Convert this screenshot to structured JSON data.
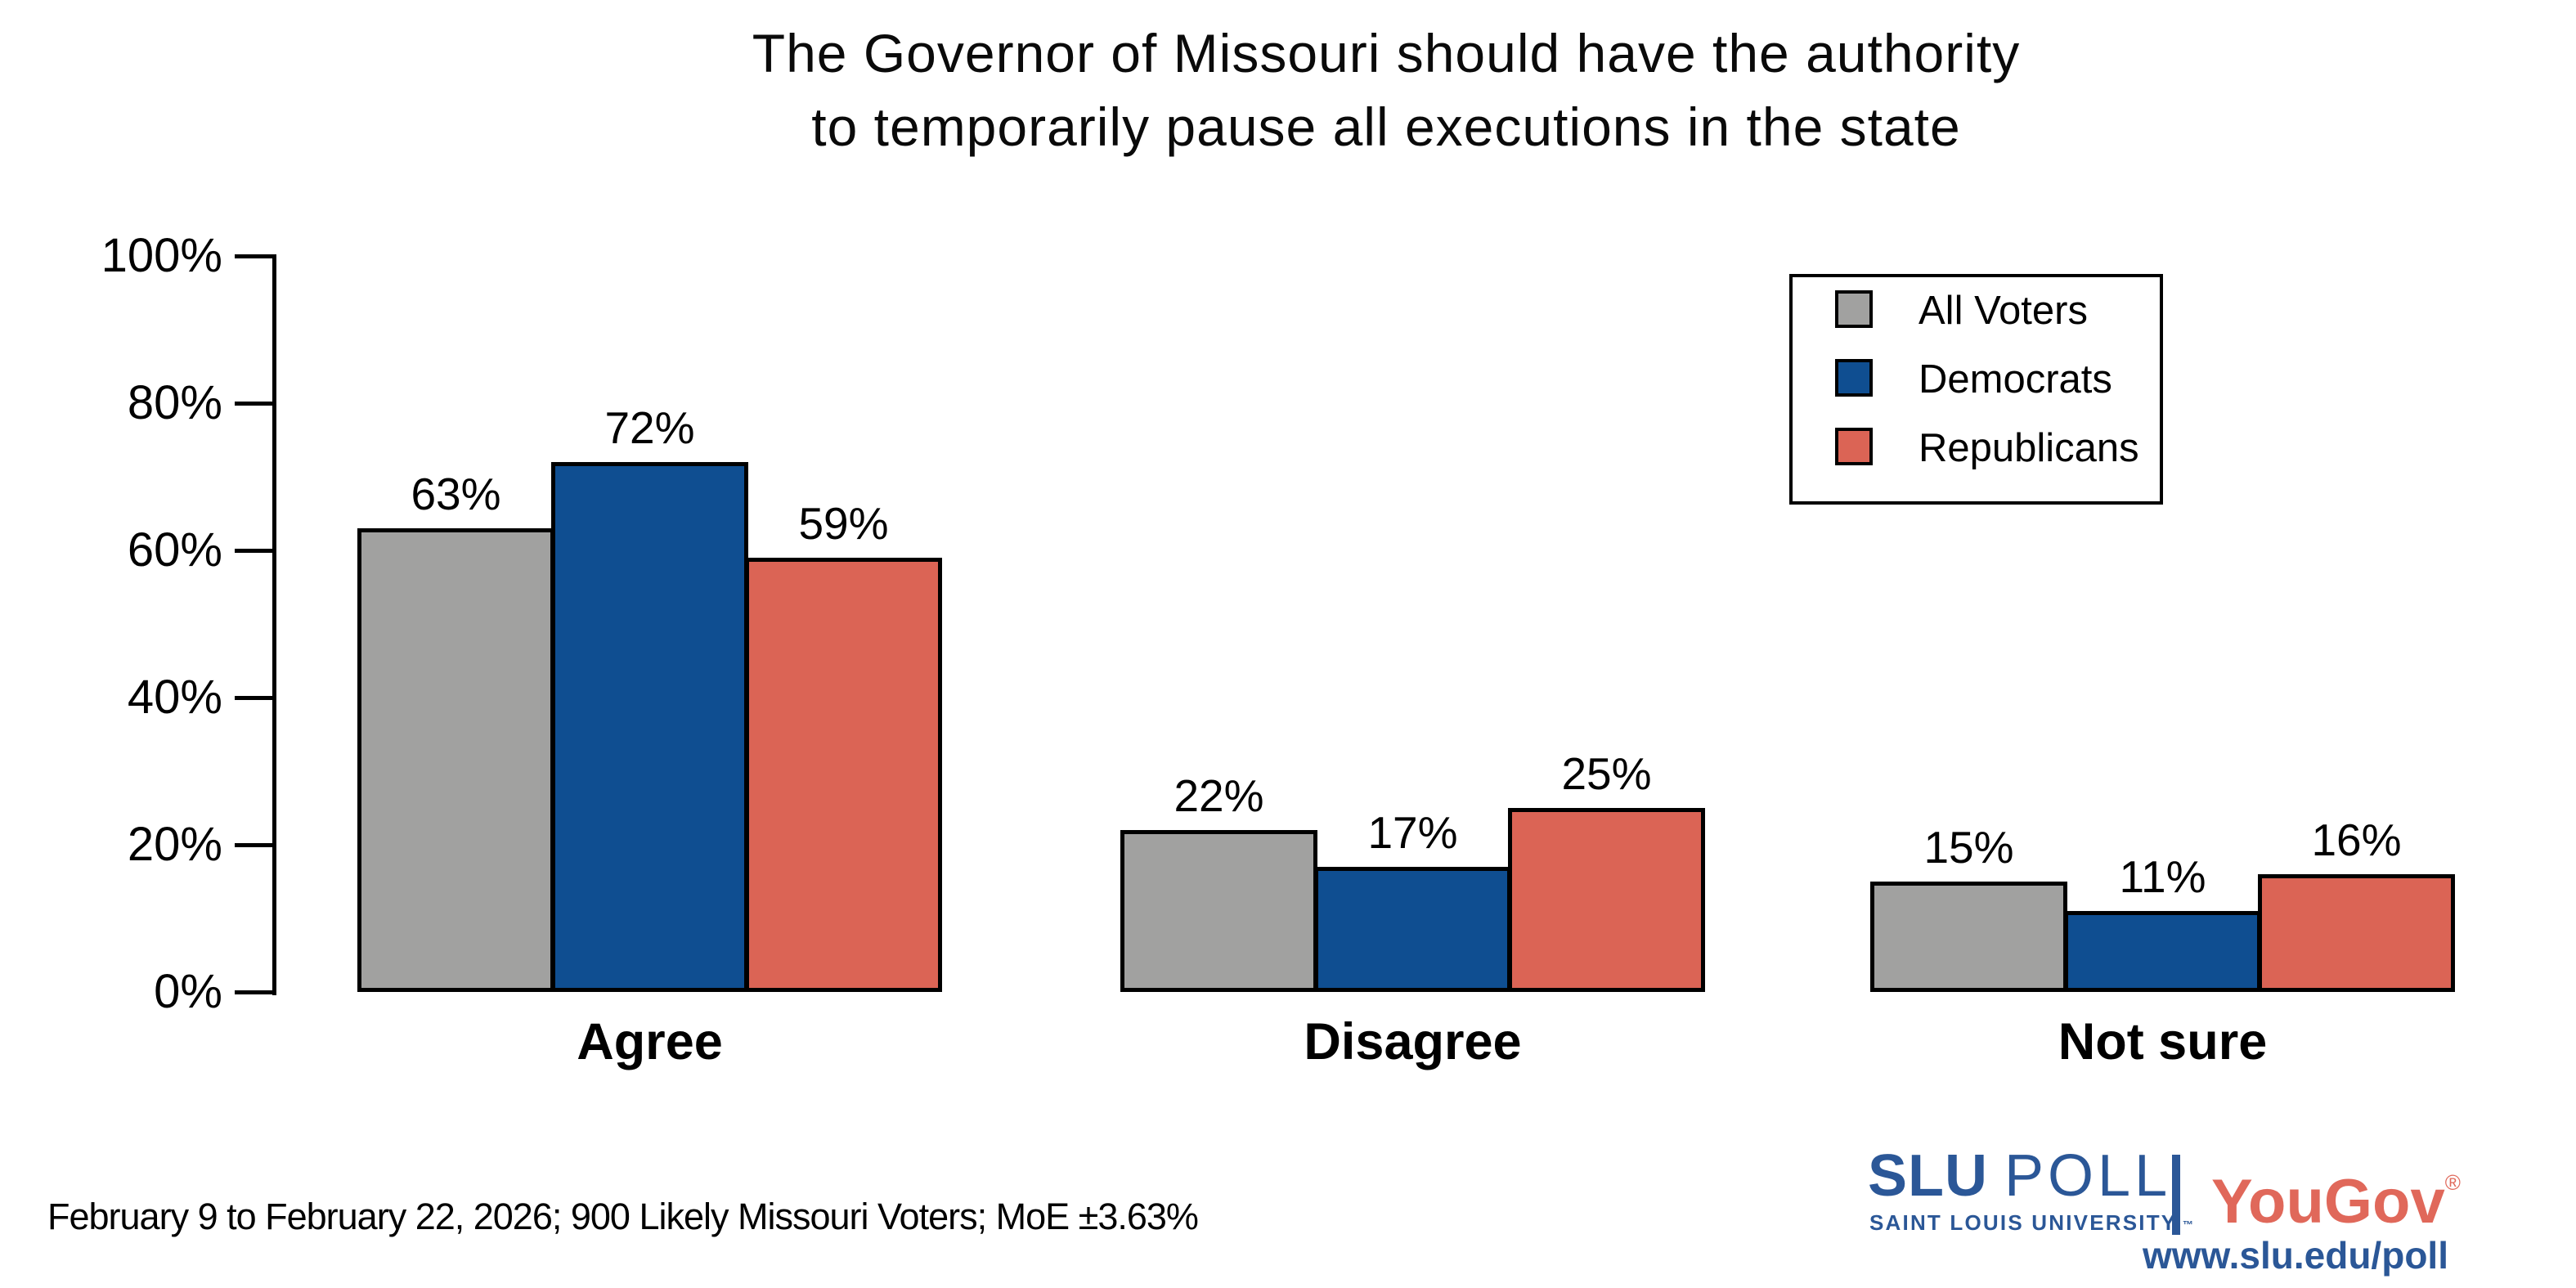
{
  "title": {
    "line1": "The Governor of Missouri should have the authority",
    "line2": "to temporarily pause all executions in the state"
  },
  "chart_data": {
    "type": "bar",
    "categories": [
      "Agree",
      "Disagree",
      "Not sure"
    ],
    "series": [
      {
        "name": "All Voters",
        "color": "#a1a1a0",
        "values": [
          63,
          22,
          15
        ]
      },
      {
        "name": "Democrats",
        "color": "#0f4e91",
        "values": [
          72,
          17,
          11
        ]
      },
      {
        "name": "Republicans",
        "color": "#db6455",
        "values": [
          59,
          25,
          16
        ]
      }
    ],
    "value_label_suffix": "%",
    "ylim": [
      0,
      100
    ],
    "yticks": [
      "0%",
      "20%",
      "40%",
      "60%",
      "80%",
      "100%"
    ],
    "grid": false,
    "legend_position": "top-right",
    "bar_outline_color": "#000000"
  },
  "footer": {
    "note": "February 9 to February 22, 2026; 900 Likely Missouri Voters; MoE ±3.63%"
  },
  "branding": {
    "slu": "SLU",
    "poll": "POLL",
    "slu_subtitle": "SAINT LOUIS UNIVERSITY.",
    "slu_tm": "™",
    "yougov": "YouGov",
    "yougov_reg": "®",
    "url": "www.slu.edu/poll",
    "slu_blue": "#2b5797",
    "yougov_red": "#e0685a"
  }
}
